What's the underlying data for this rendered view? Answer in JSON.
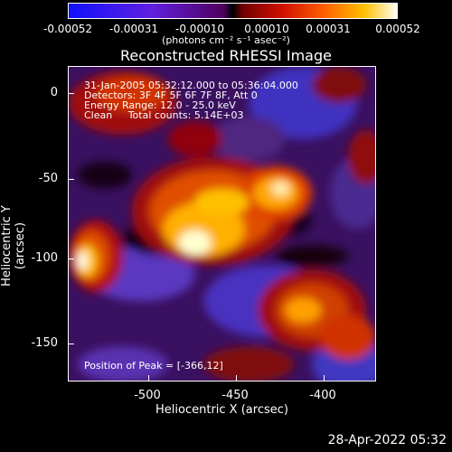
{
  "colorbar": {
    "ticks": [
      "-0.00052",
      "-0.00031",
      "-0.00010",
      "0.00010",
      "0.00031",
      "0.00052"
    ],
    "units": "(photons cm⁻² s⁻¹ asec⁻²)"
  },
  "title": "Reconstructed RHESSI Image",
  "info": {
    "time_range": "31-Jan-2005 05:32:12.000 to 05:36:04.000",
    "detectors": "Detectors: 3F 4F 5F 6F 7F 8F, Att 0",
    "energy": "Energy Range: 12.0 - 25.0 keV",
    "clean": "Clean     Total counts: 5.14E+03"
  },
  "peak": "Position of Peak = [-366,12]",
  "axes": {
    "xlabel": "Heliocentric X (arcsec)",
    "ylabel": "Heliocentric Y (arcsec)",
    "xticks": [
      "-500",
      "-450",
      "-400"
    ],
    "yticks": [
      "0",
      "-50",
      "-100",
      "-150"
    ]
  },
  "footer": "28-Apr-2022 05:32"
}
